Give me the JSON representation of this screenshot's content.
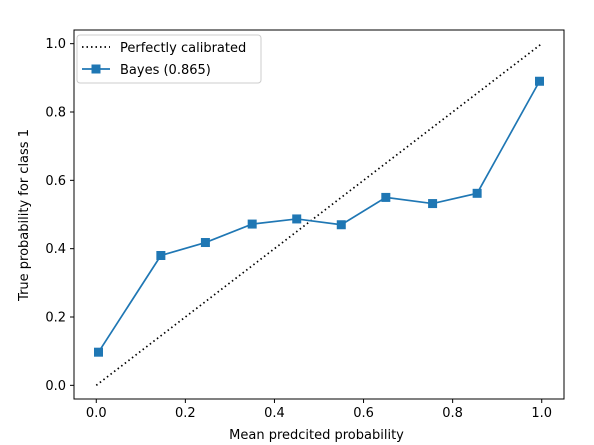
{
  "chart_data": {
    "type": "line",
    "xlabel": "Mean predcited probability",
    "ylabel": "True probability for class 1",
    "xlim": [
      -0.05,
      1.05
    ],
    "ylim": [
      -0.04,
      1.04
    ],
    "x_ticks": [
      0.0,
      0.2,
      0.4,
      0.6,
      0.8,
      1.0
    ],
    "x_tick_labels": [
      "0.0",
      "0.2",
      "0.4",
      "0.6",
      "0.8",
      "1.0"
    ],
    "y_ticks": [
      0.0,
      0.2,
      0.4,
      0.6,
      0.8,
      1.0
    ],
    "y_tick_labels": [
      "0.0",
      "0.2",
      "0.4",
      "0.6",
      "0.8",
      "1.0"
    ],
    "grid": false,
    "legend_position": "upper-left",
    "series": [
      {
        "name": "Perfectly calibrated",
        "style": "dotted",
        "color": "#000000",
        "x": [
          0.0,
          1.0
        ],
        "y": [
          0.0,
          1.0
        ]
      },
      {
        "name": "Bayes (0.865)",
        "style": "solid",
        "marker": "square",
        "color": "#1f77b4",
        "x": [
          0.005,
          0.145,
          0.245,
          0.35,
          0.45,
          0.55,
          0.65,
          0.755,
          0.855,
          0.995
        ],
        "y": [
          0.097,
          0.38,
          0.418,
          0.472,
          0.487,
          0.47,
          0.55,
          0.532,
          0.562,
          0.89
        ]
      }
    ]
  }
}
